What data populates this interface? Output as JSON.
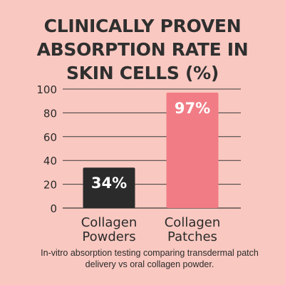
{
  "title_lines": [
    "CLINICALLY PROVEN",
    "ABSORPTION RATE IN",
    "SKIN CELLS (%)"
  ],
  "caption": "In-vitro absorption testing comparing transdermal patch delivery vs oral collagen powder.",
  "colors": {
    "background": "#f9c8c0",
    "bar_powders": "#2b2b2b",
    "bar_patches": "#f17c85",
    "grid": "#3a3a3a",
    "text": "#2b2b2b"
  },
  "chart_data": {
    "type": "bar",
    "title": "CLINICALLY PROVEN ABSORPTION RATE IN SKIN CELLS (%)",
    "categories": [
      [
        "Collagen",
        "Powders"
      ],
      [
        "Collagen",
        "Patches"
      ]
    ],
    "values": [
      34,
      97
    ],
    "data_labels": [
      "34%",
      "97%"
    ],
    "yticks": [
      "0",
      "20",
      "40",
      "60",
      "80",
      "100"
    ],
    "ylim": [
      0,
      100
    ],
    "grid": true,
    "legend": "none"
  }
}
